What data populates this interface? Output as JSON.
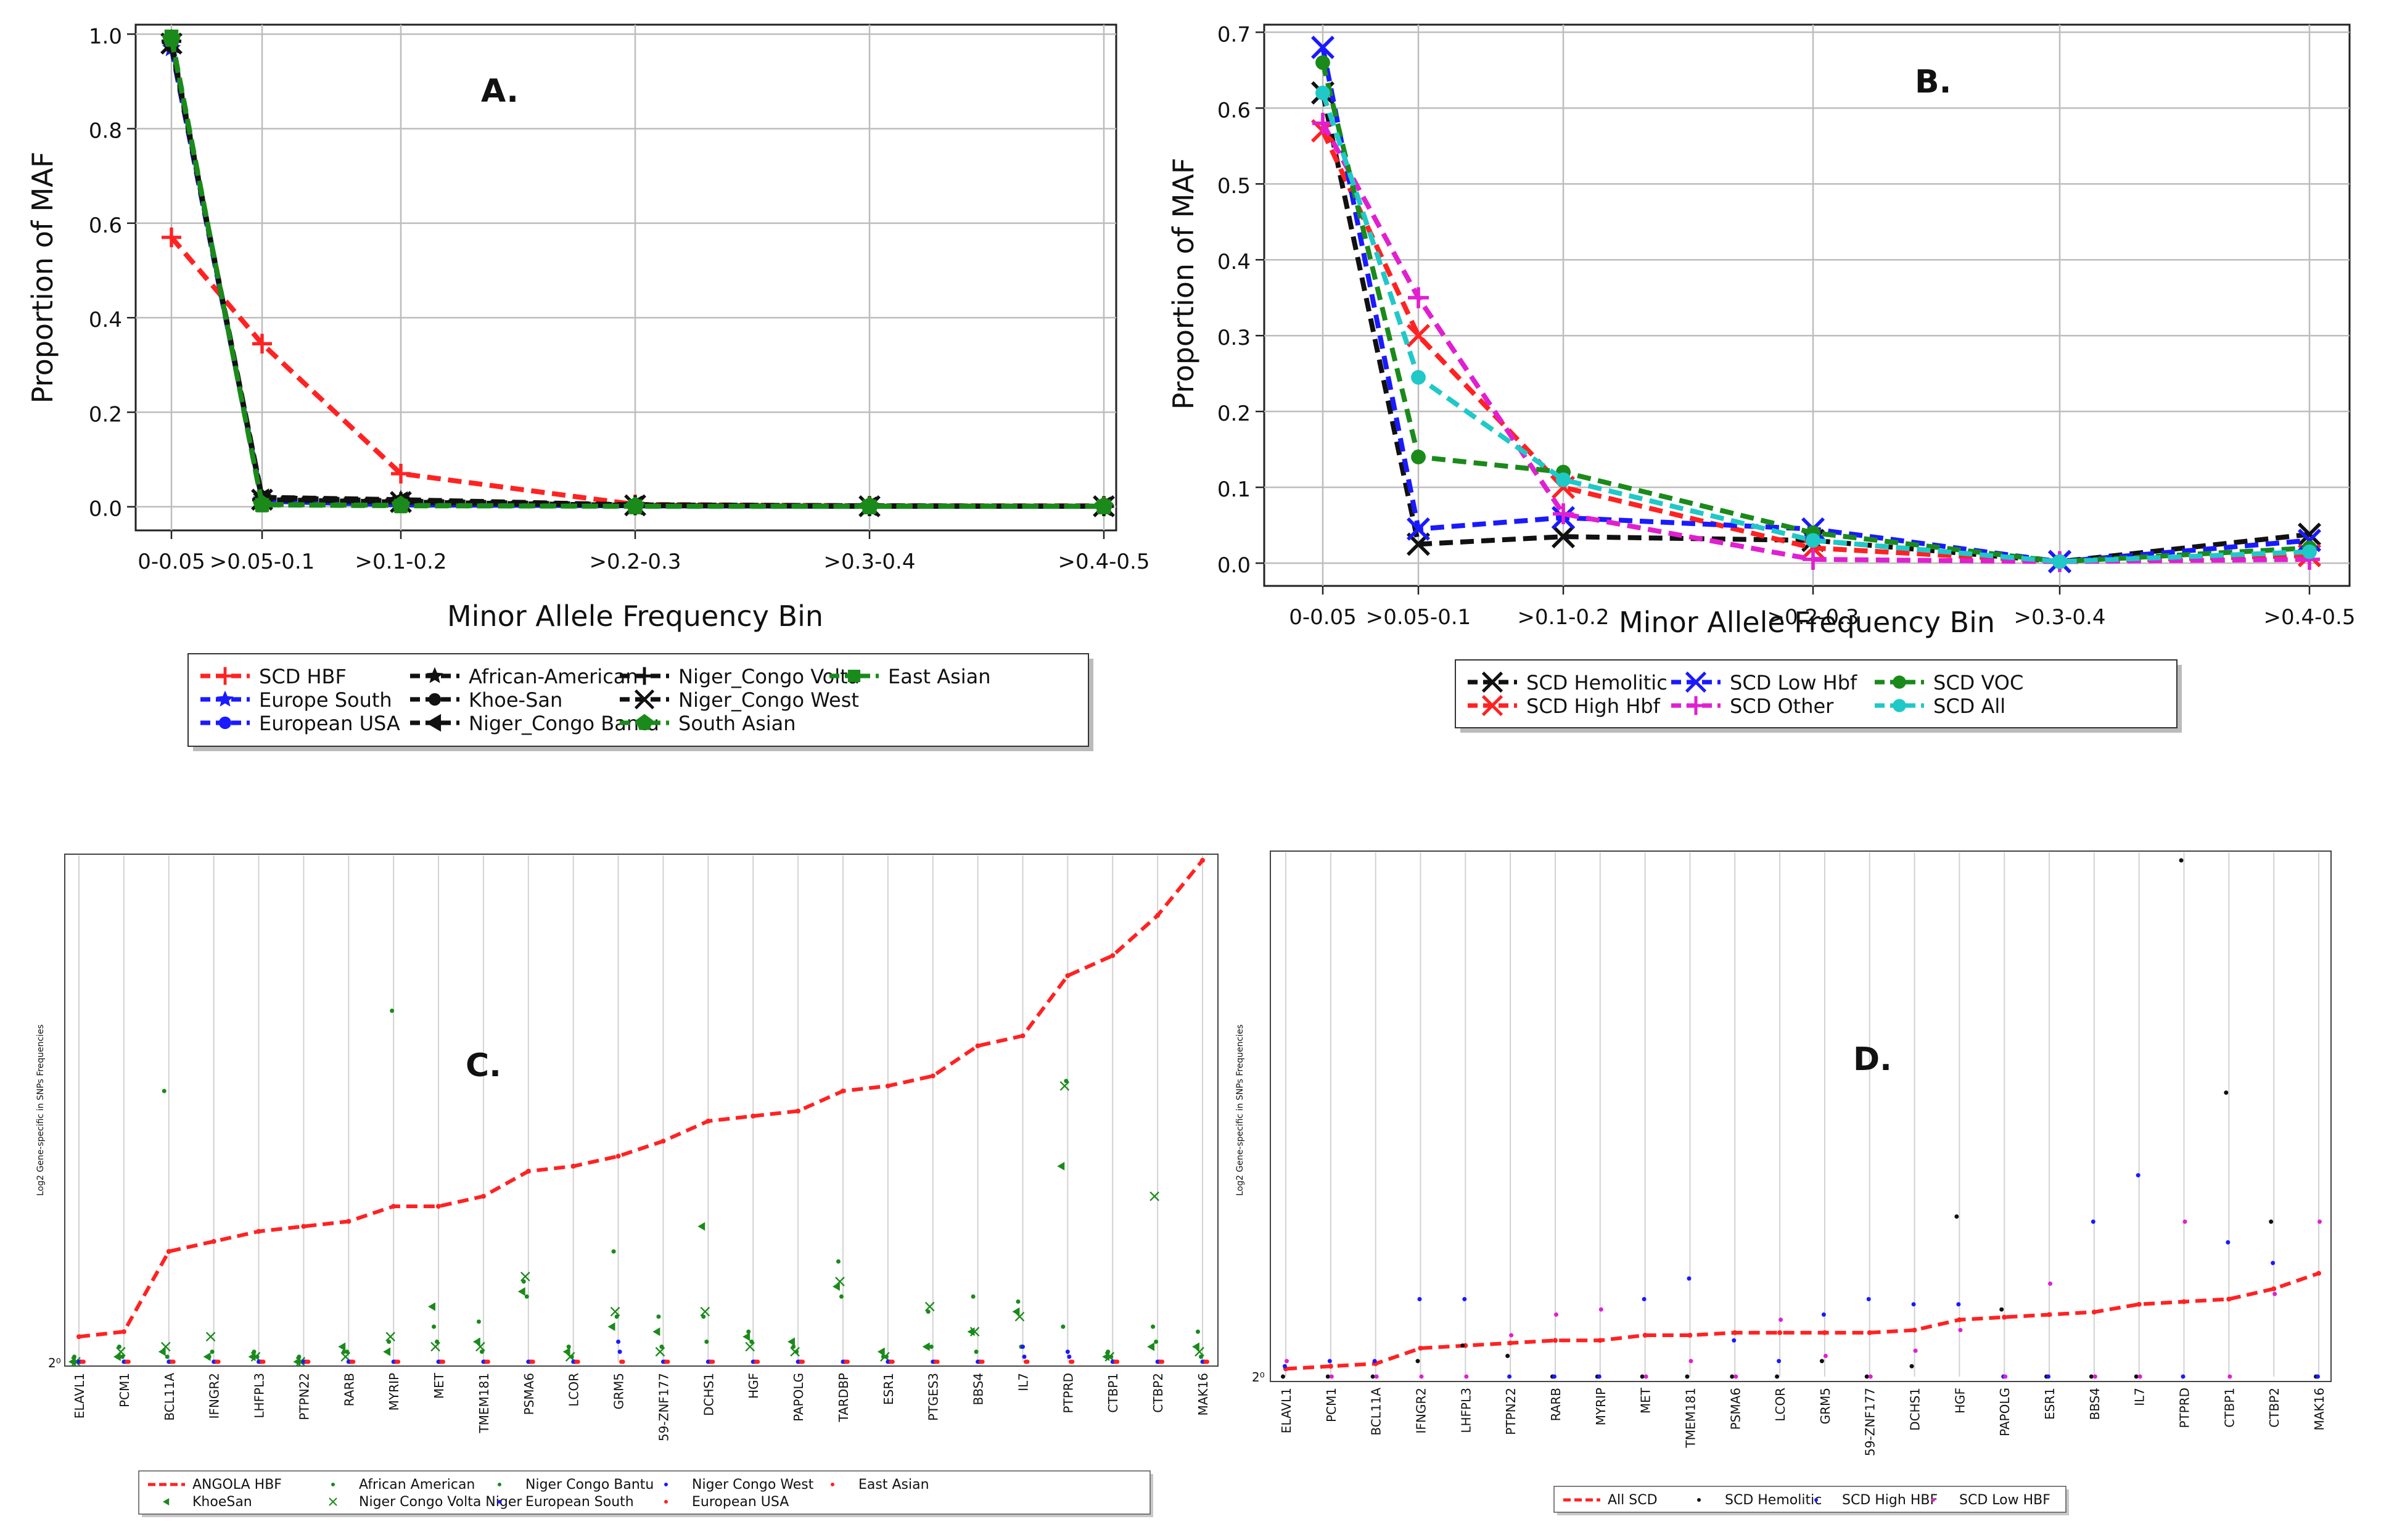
{
  "chart_data": [
    {
      "id": "A",
      "type": "line",
      "panel_label": "A.",
      "xlabel": "Minor Allele Frequency Bin",
      "ylabel": "Proportion of MAF",
      "categories": [
        "0-0.05",
        ">0.05-0.1",
        ">0.1-0.2",
        ">0.2-0.3",
        ">0.3-0.4",
        ">0.4-0.5"
      ],
      "ylim": [
        -0.05,
        1.02
      ],
      "yticks": [
        "0.0",
        "0.2",
        "0.4",
        "0.6",
        "0.8",
        "1.0"
      ],
      "ytick_values": [
        0,
        0.2,
        0.4,
        0.6,
        0.8,
        1.0
      ],
      "legend_location": "below",
      "series": [
        {
          "name": "SCD HBF",
          "color": "#ff2222",
          "marker": "+",
          "values": [
            0.57,
            0.345,
            0.07,
            0.005,
            0.002,
            0.002
          ]
        },
        {
          "name": "Europe South",
          "color": "#1a1aff",
          "marker": "*",
          "values": [
            0.97,
            0.015,
            0.005,
            0.002,
            0.001,
            0.001
          ]
        },
        {
          "name": "European USA",
          "color": "#1a1aff",
          "marker": "o",
          "values": [
            0.98,
            0.012,
            0.004,
            0.002,
            0.001,
            0.001
          ]
        },
        {
          "name": "African-American",
          "color": "#111111",
          "marker": "*",
          "values": [
            0.98,
            0.02,
            0.015,
            0.004,
            0.002,
            0.001
          ]
        },
        {
          "name": "Khoe-San",
          "color": "#111111",
          "marker": "o",
          "values": [
            0.975,
            0.02,
            0.012,
            0.004,
            0.002,
            0.001
          ]
        },
        {
          "name": "Niger_Congo Bantu",
          "color": "#111111",
          "marker": "<",
          "values": [
            0.98,
            0.018,
            0.012,
            0.003,
            0.001,
            0.001
          ]
        },
        {
          "name": "Niger_Congo Volta",
          "color": "#111111",
          "marker": "+",
          "values": [
            0.985,
            0.015,
            0.01,
            0.003,
            0.001,
            0.001
          ]
        },
        {
          "name": "Niger_Congo West",
          "color": "#111111",
          "marker": "x",
          "values": [
            0.98,
            0.015,
            0.01,
            0.003,
            0.001,
            0.001
          ]
        },
        {
          "name": "South Asian",
          "color": "#1a8a1a",
          "marker": "p",
          "values": [
            0.99,
            0.005,
            0.003,
            0.001,
            0.001,
            0.001
          ]
        },
        {
          "name": "East Asian",
          "color": "#1a8a1a",
          "marker": "s",
          "values": [
            0.995,
            0.004,
            0.002,
            0.001,
            0.001,
            0.001
          ]
        }
      ]
    },
    {
      "id": "B",
      "type": "line",
      "panel_label": "B.",
      "xlabel": "Minor Allele Frequency Bin",
      "ylabel": "Proportion of MAF",
      "categories": [
        "0-0.05",
        ">0.05-0.1",
        ">0.1-0.2",
        ">0.2-0.3",
        ">0.3-0.4",
        ">0.4-0.5"
      ],
      "ylim": [
        -0.03,
        0.71
      ],
      "yticks": [
        "0.0",
        "0.1",
        "0.2",
        "0.3",
        "0.4",
        "0.5",
        "0.6",
        "0.7"
      ],
      "ytick_values": [
        0,
        0.1,
        0.2,
        0.3,
        0.4,
        0.5,
        0.6,
        0.7
      ],
      "legend_location": "below",
      "series": [
        {
          "name": "SCD Hemolitic",
          "color": "#111111",
          "marker": "x",
          "values": [
            0.62,
            0.025,
            0.035,
            0.03,
            0.002,
            0.038
          ]
        },
        {
          "name": "SCD High Hbf",
          "color": "#ff2222",
          "marker": "x",
          "values": [
            0.57,
            0.3,
            0.1,
            0.02,
            0.002,
            0.01
          ]
        },
        {
          "name": "SCD Low Hbf",
          "color": "#1a1aff",
          "marker": "x",
          "values": [
            0.68,
            0.045,
            0.06,
            0.045,
            0.002,
            0.03
          ]
        },
        {
          "name": "SCD Other",
          "color": "#e020d0",
          "marker": "+",
          "values": [
            0.58,
            0.35,
            0.065,
            0.005,
            0.002,
            0.005
          ]
        },
        {
          "name": "SCD VOC",
          "color": "#1a8a1a",
          "marker": "o",
          "values": [
            0.66,
            0.14,
            0.12,
            0.04,
            0.002,
            0.02
          ]
        },
        {
          "name": "SCD All",
          "color": "#20c8c8",
          "marker": "o",
          "values": [
            0.62,
            0.245,
            0.11,
            0.03,
            0.002,
            0.015
          ]
        }
      ]
    },
    {
      "id": "C",
      "type": "scatter",
      "panel_label": "C.",
      "ylabel": "Log2 Gene-specific in SNPs Frequencies",
      "y_origin_label": "2⁰",
      "categories": [
        "ELAVL1",
        "PCM1",
        "BCL11A",
        "IFNGR2",
        "LHFPL3",
        "PTPN22",
        "RARB",
        "MYRIP",
        "MET",
        "TMEM181",
        "PSMA6",
        "LCOR",
        "GRM5",
        "59-ZNF177",
        "DCHS1",
        "HGF",
        "PAPOLG",
        "TARDBP",
        "ESR1",
        "PTGES3",
        "BBS4",
        "IL7",
        "PTPRD",
        "CTBP1",
        "CTBP2",
        "MAK16"
      ],
      "ylim": [
        0,
        10
      ],
      "line_series": {
        "name": "ANGOLA HBF",
        "color": "#ff2222",
        "values": [
          0.5,
          0.6,
          2.2,
          2.4,
          2.6,
          2.7,
          2.8,
          3.1,
          3.1,
          3.3,
          3.8,
          3.9,
          4.1,
          4.4,
          4.8,
          4.9,
          5.0,
          5.4,
          5.5,
          5.7,
          6.3,
          6.5,
          7.7,
          8.1,
          8.9,
          10.0
        ]
      },
      "point_series": [
        {
          "name": "KhoeSan",
          "color": "#1a8a1a",
          "marker": "<",
          "values": [
            0.0,
            0.1,
            0.2,
            0.1,
            0.1,
            0.0,
            0.3,
            0.2,
            1.1,
            0.4,
            1.4,
            0.2,
            0.7,
            0.6,
            2.7,
            0.5,
            0.4,
            1.5,
            0.2,
            0.3,
            0.6,
            1.0,
            3.9,
            0.1,
            0.3,
            0.3
          ]
        },
        {
          "name": "African American",
          "color": "#1a8a1a",
          "marker": ".",
          "values": [
            0.1,
            0.3,
            5.4,
            0.1,
            0.2,
            0.1,
            0.2,
            0.4,
            0.7,
            0.8,
            1.6,
            0.3,
            2.2,
            0.9,
            0.9,
            0.6,
            0.3,
            2.0,
            0.1,
            1.0,
            1.3,
            1.2,
            0.7,
            0.2,
            0.7,
            0.6
          ]
        },
        {
          "name": "Niger Congo Volta Niger",
          "color": "#1a8a1a",
          "marker": "x",
          "values": [
            0.0,
            0.2,
            0.3,
            0.5,
            0.1,
            0.0,
            0.1,
            0.5,
            0.3,
            0.3,
            1.7,
            0.1,
            1.0,
            0.2,
            1.0,
            0.3,
            0.2,
            1.6,
            0.1,
            1.1,
            0.6,
            0.9,
            5.5,
            0.1,
            3.3,
            0.2
          ]
        },
        {
          "name": "Niger Congo Bantu",
          "color": "#1a8a1a",
          "marker": ".",
          "values": [
            0.0,
            0.1,
            0.1,
            0.2,
            0.1,
            0.0,
            0.2,
            7.0,
            0.4,
            0.2,
            1.3,
            0.1,
            0.9,
            0.3,
            0.4,
            0.4,
            0.2,
            1.3,
            0.1,
            0.3,
            0.2,
            0.3,
            5.6,
            0.1,
            0.4,
            0.1
          ]
        },
        {
          "name": "European South",
          "color": "#1a1aff",
          "marker": ".",
          "values": [
            0.0,
            0.0,
            0.0,
            0.0,
            0.0,
            0.0,
            0.0,
            0.0,
            0.0,
            0.0,
            0.0,
            0.0,
            0.4,
            0.0,
            0.0,
            0.0,
            0.0,
            0.0,
            0.0,
            0.0,
            0.0,
            0.3,
            0.2,
            0.0,
            0.0,
            0.0
          ]
        },
        {
          "name": "Niger Congo West",
          "color": "#1a1aff",
          "marker": ".",
          "values": [
            0.0,
            0.0,
            0.0,
            0.0,
            0.0,
            0.0,
            0.0,
            0.0,
            0.0,
            0.0,
            0.0,
            0.0,
            0.2,
            0.0,
            0.0,
            0.0,
            0.0,
            0.0,
            0.0,
            0.0,
            0.0,
            0.1,
            0.1,
            0.0,
            0.0,
            0.0
          ]
        },
        {
          "name": "European USA",
          "color": "#ff2222",
          "marker": ".",
          "values": [
            0.0,
            0.0,
            0.0,
            0.0,
            0.0,
            0.0,
            0.0,
            0.0,
            0.0,
            0.0,
            0.0,
            0.0,
            0.0,
            0.0,
            0.0,
            0.0,
            0.0,
            0.0,
            0.0,
            0.0,
            0.0,
            0.0,
            0.0,
            0.0,
            0.0,
            0.0
          ]
        },
        {
          "name": "East Asian",
          "color": "#ff2222",
          "marker": ".",
          "values": [
            0.0,
            0.0,
            0.0,
            0.0,
            0.0,
            0.0,
            0.0,
            0.0,
            0.0,
            0.0,
            0.0,
            0.0,
            0.0,
            0.0,
            0.0,
            0.0,
            0.0,
            0.0,
            0.0,
            0.0,
            0.0,
            0.0,
            0.0,
            0.0,
            0.0,
            0.0
          ]
        }
      ],
      "legend_location": "below"
    },
    {
      "id": "D",
      "type": "scatter",
      "panel_label": "D.",
      "ylabel": "Log2 Gene-specific in SNPs Frequencies",
      "y_origin_label": "2⁰",
      "categories": [
        "ELAVL1",
        "PCM1",
        "BCL11A",
        "IFNGR2",
        "LHFPL3",
        "PTPN22",
        "RARB",
        "MYRIP",
        "MET",
        "TMEM181",
        "PSMA6",
        "LCOR",
        "GRM5",
        "59-ZNF177",
        "DCHS1",
        "HGF",
        "PAPOLG",
        "ESR1",
        "BBS4",
        "IL7",
        "PTPRD",
        "CTBP1",
        "CTBP2",
        "MAK16"
      ],
      "ylim": [
        0,
        10
      ],
      "line_series": {
        "name": "All SCD",
        "color": "#ff2222",
        "values": [
          0.15,
          0.2,
          0.25,
          0.55,
          0.6,
          0.65,
          0.7,
          0.7,
          0.8,
          0.8,
          0.85,
          0.85,
          0.85,
          0.85,
          0.9,
          1.1,
          1.15,
          1.2,
          1.25,
          1.4,
          1.45,
          1.5,
          1.7,
          2.0
        ]
      },
      "point_series": [
        {
          "name": "SCD Hemolitic",
          "color": "#111111",
          "marker": ".",
          "values": [
            0.0,
            0.0,
            0.0,
            0.3,
            0.6,
            0.4,
            0.0,
            0.0,
            0.0,
            0.0,
            0.0,
            0.0,
            0.3,
            0.0,
            0.2,
            3.1,
            1.3,
            0.0,
            0.0,
            0.0,
            10.0,
            5.5,
            3.0,
            0.0
          ]
        },
        {
          "name": "SCD High HBF",
          "color": "#1a1aff",
          "marker": ".",
          "values": [
            0.2,
            0.3,
            0.3,
            1.5,
            1.5,
            0.0,
            0.0,
            0.0,
            1.5,
            1.9,
            0.7,
            0.3,
            1.2,
            1.5,
            1.4,
            1.4,
            0.0,
            0.0,
            3.0,
            3.9,
            0.0,
            2.6,
            2.2,
            0.0
          ]
        },
        {
          "name": "SCD Low HBF",
          "color": "#e020d0",
          "marker": ".",
          "values": [
            0.3,
            0.0,
            0.0,
            0.0,
            0.0,
            0.8,
            1.2,
            1.3,
            0.0,
            0.3,
            0.0,
            1.1,
            0.4,
            0.0,
            0.5,
            0.9,
            0.0,
            1.8,
            0.0,
            0.0,
            3.0,
            0.0,
            1.6,
            3.0
          ]
        }
      ],
      "legend_location": "below"
    }
  ]
}
